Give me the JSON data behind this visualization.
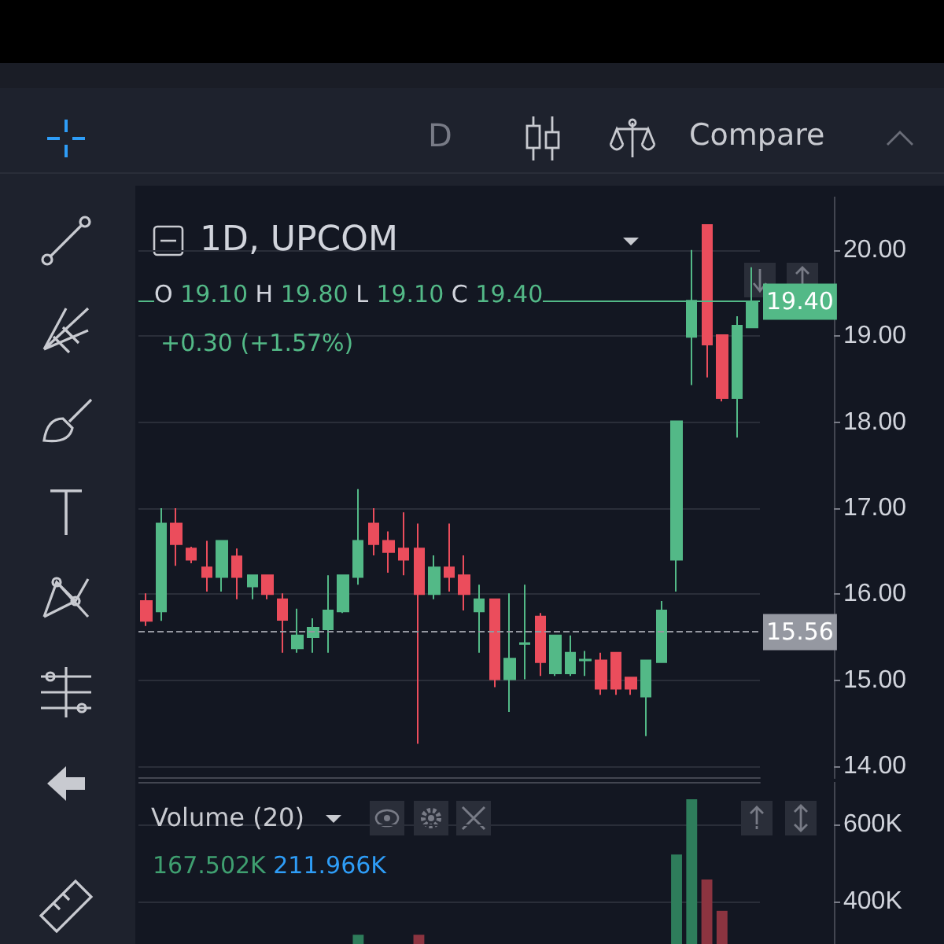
{
  "chart_data": [
    {
      "type": "candlestick",
      "title": "1D, UPCOM",
      "subtitle": "O 19.10 H 19.80 L 19.10 C 19.40",
      "annotations": [
        "+0.30 (+1.57%)",
        "D",
        "Compare"
      ],
      "categories": [
        null,
        null,
        null,
        null,
        null,
        null,
        null,
        null,
        null,
        null,
        null,
        null,
        null,
        null,
        null,
        null,
        null,
        null,
        null,
        null,
        null,
        null,
        null,
        null,
        null,
        null,
        null,
        null,
        null,
        null,
        null,
        null,
        null,
        null,
        null,
        null,
        null,
        null,
        null,
        null,
        null
      ],
      "ohlc": [
        [
          15.92,
          16.01,
          15.63,
          15.69
        ],
        [
          15.8,
          17.0,
          15.69,
          16.82
        ],
        [
          16.82,
          17.0,
          16.33,
          16.58
        ],
        [
          16.53,
          16.55,
          16.36,
          16.4
        ],
        [
          16.31,
          16.62,
          16.03,
          16.2
        ],
        [
          16.2,
          16.62,
          16.03,
          16.62
        ],
        [
          16.44,
          16.53,
          15.94,
          16.2
        ],
        [
          16.09,
          16.22,
          15.94,
          16.22
        ],
        [
          16.22,
          16.22,
          15.94,
          16.0
        ],
        [
          15.94,
          16.01,
          15.32,
          15.7
        ],
        [
          15.37,
          15.83,
          15.32,
          15.52
        ],
        [
          15.5,
          15.72,
          15.32,
          15.61
        ],
        [
          15.59,
          16.22,
          15.32,
          15.81
        ],
        [
          15.8,
          16.22,
          15.78,
          16.22
        ],
        [
          16.2,
          17.22,
          16.11,
          16.62
        ],
        [
          16.82,
          17.0,
          16.45,
          16.58
        ],
        [
          16.62,
          16.73,
          16.25,
          16.49
        ],
        [
          16.53,
          16.95,
          16.22,
          16.4
        ],
        [
          16.53,
          16.82,
          14.26,
          16.0
        ],
        [
          16.0,
          16.45,
          15.94,
          16.31
        ],
        [
          16.31,
          16.82,
          16.03,
          16.2
        ],
        [
          16.22,
          16.45,
          15.81,
          16.0
        ],
        [
          15.8,
          16.11,
          15.32,
          15.94
        ],
        [
          15.94,
          15.94,
          14.92,
          15.01
        ],
        [
          15.01,
          16.01,
          14.63,
          15.25
        ],
        [
          15.42,
          16.11,
          15.01,
          15.43
        ],
        [
          15.74,
          15.78,
          15.05,
          15.21
        ],
        [
          15.08,
          15.52,
          15.05,
          15.52
        ],
        [
          15.08,
          15.52,
          15.05,
          15.32
        ],
        [
          15.23,
          15.34,
          15.05,
          15.24
        ],
        [
          15.23,
          15.32,
          14.83,
          14.9
        ],
        [
          15.32,
          15.32,
          14.83,
          14.9
        ],
        [
          15.03,
          15.03,
          14.83,
          14.9
        ],
        [
          14.81,
          15.23,
          14.35,
          15.23
        ],
        [
          15.21,
          15.92,
          15.21,
          15.81
        ],
        [
          16.4,
          18.01,
          16.03,
          18.01
        ],
        [
          18.99,
          20.0,
          18.43,
          19.41
        ],
        [
          20.29,
          20.29,
          18.52,
          18.9
        ],
        [
          19.01,
          19.01,
          18.24,
          18.28
        ],
        [
          18.28,
          19.23,
          17.82,
          19.12
        ],
        [
          19.1,
          19.8,
          19.1,
          19.4
        ]
      ],
      "colors": [
        "#eb4d5c",
        "#53b987",
        "#eb4d5c",
        "#eb4d5c",
        "#eb4d5c",
        "#53b987",
        "#eb4d5c",
        "#53b987",
        "#eb4d5c",
        "#eb4d5c",
        "#53b987",
        "#53b987",
        "#53b987",
        "#53b987",
        "#53b987",
        "#eb4d5c",
        "#eb4d5c",
        "#eb4d5c",
        "#eb4d5c",
        "#53b987",
        "#eb4d5c",
        "#eb4d5c",
        "#53b987",
        "#eb4d5c",
        "#53b987",
        "#53b987",
        "#eb4d5c",
        "#53b987",
        "#53b987",
        "#53b987",
        "#eb4d5c",
        "#eb4d5c",
        "#eb4d5c",
        "#53b987",
        "#53b987",
        "#53b987",
        "#53b987",
        "#eb4d5c",
        "#eb4d5c",
        "#53b987",
        "#53b987"
      ],
      "ylim": [
        13.86,
        20.62
      ],
      "yticks": [
        {
          "value": 14,
          "label": "14.00"
        },
        {
          "value": 15,
          "label": "15.00"
        },
        {
          "value": 16,
          "label": "16.00"
        },
        {
          "value": 17,
          "label": "17.00"
        },
        {
          "value": 18,
          "label": "18.00"
        },
        {
          "value": 19,
          "label": "19.00"
        },
        {
          "value": 20,
          "label": "20.00"
        }
      ],
      "grid": "y",
      "tick_labels": "y",
      "ref_lines": [
        {
          "axis": "y",
          "value": 15.56,
          "label": "15.56",
          "color": "#9598a1",
          "line_style": "dashed"
        },
        {
          "axis": "y",
          "value": 19.4,
          "label": "19.40",
          "color": "#53b987",
          "line_style": "solid"
        }
      ]
    },
    {
      "type": "bar",
      "title": "Volume (20)",
      "annotations": [
        "167.502K",
        "211.966K"
      ],
      "categories": [
        null,
        null,
        null,
        null,
        null,
        null,
        null,
        null,
        null,
        null,
        null,
        null,
        null,
        null,
        null,
        null,
        null,
        null,
        null,
        null,
        null,
        null,
        null,
        null,
        null,
        null,
        null,
        null,
        null,
        null,
        null,
        null,
        null,
        null,
        null,
        null,
        null,
        null,
        null,
        null,
        null
      ],
      "values": [
        null,
        null,
        null,
        null,
        null,
        null,
        null,
        null,
        null,
        null,
        null,
        null,
        null,
        null,
        314000,
        null,
        null,
        null,
        314000,
        null,
        null,
        null,
        null,
        null,
        null,
        null,
        null,
        null,
        null,
        null,
        null,
        null,
        null,
        null,
        null,
        522000,
        665000,
        457000,
        376000,
        null,
        null
      ],
      "colors": [
        "#2e7d5b",
        "#2e7d5b",
        "#2e7d5b",
        "#2e7d5b",
        "#2e7d5b",
        "#2e7d5b",
        "#2e7d5b",
        "#2e7d5b",
        "#2e7d5b",
        "#2e7d5b",
        "#2e7d5b",
        "#2e7d5b",
        "#2e7d5b",
        "#2e7d5b",
        "#2e7d5b",
        "#2e7d5b",
        "#2e7d5b",
        "#2e7d5b",
        "#8c3440",
        "#2e7d5b",
        "#2e7d5b",
        "#2e7d5b",
        "#2e7d5b",
        "#2e7d5b",
        "#2e7d5b",
        "#2e7d5b",
        "#2e7d5b",
        "#2e7d5b",
        "#2e7d5b",
        "#2e7d5b",
        "#2e7d5b",
        "#2e7d5b",
        "#2e7d5b",
        "#2e7d5b",
        "#2e7d5b",
        "#2e7d5b",
        "#2e7d5b",
        "#8c3440",
        "#8c3440",
        "#2e7d5b",
        "#2e7d5b"
      ],
      "ylim": [
        290000,
        710000
      ],
      "yticks": [
        {
          "value": 400000,
          "label": "400K"
        },
        {
          "value": 600000,
          "label": "600K"
        }
      ],
      "grid": "y",
      "tick_labels": "y"
    }
  ]
}
